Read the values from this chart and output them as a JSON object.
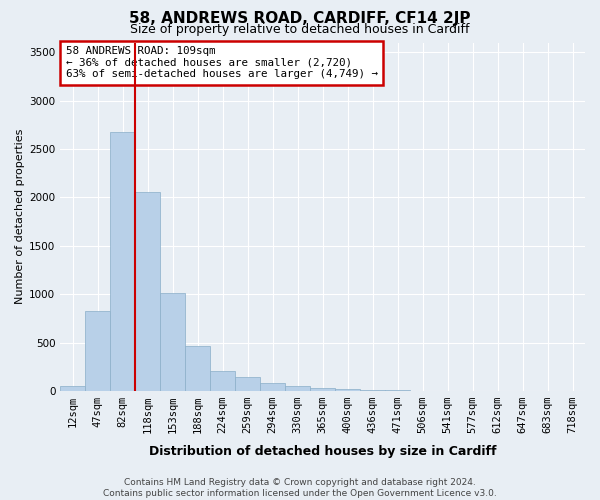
{
  "title1": "58, ANDREWS ROAD, CARDIFF, CF14 2JP",
  "title2": "Size of property relative to detached houses in Cardiff",
  "xlabel": "Distribution of detached houses by size in Cardiff",
  "ylabel": "Number of detached properties",
  "categories": [
    "12sqm",
    "47sqm",
    "82sqm",
    "118sqm",
    "153sqm",
    "188sqm",
    "224sqm",
    "259sqm",
    "294sqm",
    "330sqm",
    "365sqm",
    "400sqm",
    "436sqm",
    "471sqm",
    "506sqm",
    "541sqm",
    "577sqm",
    "612sqm",
    "647sqm",
    "683sqm",
    "718sqm"
  ],
  "values": [
    50,
    830,
    2680,
    2060,
    1010,
    460,
    210,
    140,
    80,
    50,
    30,
    20,
    15,
    10,
    5,
    3,
    2,
    1,
    1,
    1,
    0
  ],
  "bar_color": "#b8d0e8",
  "bar_edge_color": "#8aaec8",
  "vline_color": "#cc0000",
  "ylim": [
    0,
    3600
  ],
  "yticks": [
    0,
    500,
    1000,
    1500,
    2000,
    2500,
    3000,
    3500
  ],
  "annotation_text": "58 ANDREWS ROAD: 109sqm\n← 36% of detached houses are smaller (2,720)\n63% of semi-detached houses are larger (4,749) →",
  "box_color": "#ffffff",
  "box_edge_color": "#cc0000",
  "footer": "Contains HM Land Registry data © Crown copyright and database right 2024.\nContains public sector information licensed under the Open Government Licence v3.0.",
  "background_color": "#e8eef4",
  "grid_color": "#ffffff",
  "title1_fontsize": 11,
  "title2_fontsize": 9,
  "ylabel_fontsize": 8,
  "xlabel_fontsize": 9,
  "tick_fontsize": 7.5,
  "footer_fontsize": 6.5
}
